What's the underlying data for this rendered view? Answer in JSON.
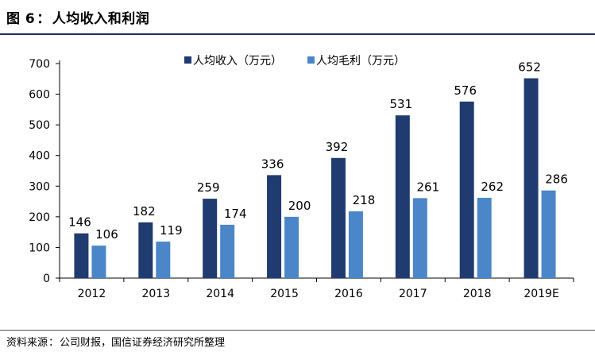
{
  "header": {
    "figure_label": "图 6",
    "separator": "：",
    "title": "人均收入和利润"
  },
  "source": {
    "label": "资料来源",
    "separator": "：",
    "text": "公司财报，国信证券经济研究所整理"
  },
  "colors": {
    "series_income": "#1f3b70",
    "series_profit": "#4a86c8",
    "axis": "#000000",
    "text": "#000000",
    "title_rule": "#1f2f57"
  },
  "chart_data": {
    "type": "bar",
    "categories": [
      "2012",
      "2013",
      "2014",
      "2015",
      "2016",
      "2017",
      "2018",
      "2019E"
    ],
    "series": [
      {
        "name": "人均收入（万元）",
        "values": [
          146,
          182,
          259,
          336,
          392,
          531,
          576,
          652
        ]
      },
      {
        "name": "人均毛利（万元）",
        "values": [
          106,
          119,
          174,
          200,
          218,
          261,
          262,
          286
        ]
      }
    ],
    "yticks": [
      "0",
      "100",
      "200",
      "300",
      "400",
      "500",
      "600",
      "700"
    ],
    "ylim": [
      0,
      700
    ],
    "grid": false,
    "legend_position": "top-center",
    "data_labels": true
  }
}
